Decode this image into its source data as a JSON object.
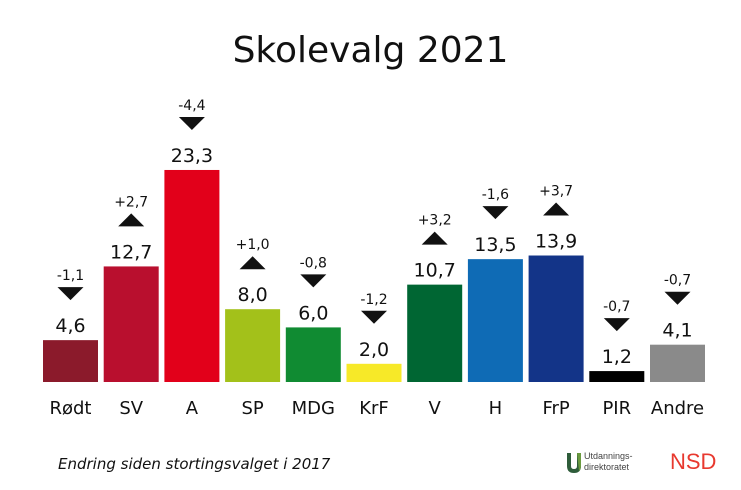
{
  "chart_data": {
    "type": "bar",
    "title": "Skolevalg 2021",
    "categories": [
      "Rødt",
      "SV",
      "A",
      "SP",
      "MDG",
      "KrF",
      "V",
      "H",
      "FrP",
      "PIR",
      "Andre"
    ],
    "values": [
      4.6,
      12.7,
      23.3,
      8.0,
      6.0,
      2.0,
      10.7,
      13.5,
      13.9,
      1.2,
      4.1
    ],
    "value_labels": [
      "4,6",
      "12,7",
      "23,3",
      "8,0",
      "6,0",
      "2,0",
      "10,7",
      "13,5",
      "13,9",
      "1,2",
      "4,1"
    ],
    "change_labels": [
      "-1,1",
      "+2,7",
      "-4,4",
      "+1,0",
      "-0,8",
      "-1,2",
      "+3,2",
      "-1,6",
      "+3,7",
      "-0,7",
      "-0,7"
    ],
    "change_direction": [
      "down",
      "up",
      "down",
      "up",
      "down",
      "down",
      "up",
      "down",
      "up",
      "down",
      "down"
    ],
    "colors": [
      "#8b1a2b",
      "#b90f2e",
      "#e2001a",
      "#a3c11a",
      "#108b32",
      "#f7e928",
      "#006633",
      "#0f6bb5",
      "#133488",
      "#000000",
      "#8a8a8a"
    ],
    "ylim": [
      0,
      25
    ],
    "xlabel": "",
    "ylabel": ""
  },
  "footnote": "Endring siden stortingsvalget i 2017",
  "logos": {
    "udir": "Utdannings-\ndirektoratet",
    "nsd": "NSD"
  }
}
